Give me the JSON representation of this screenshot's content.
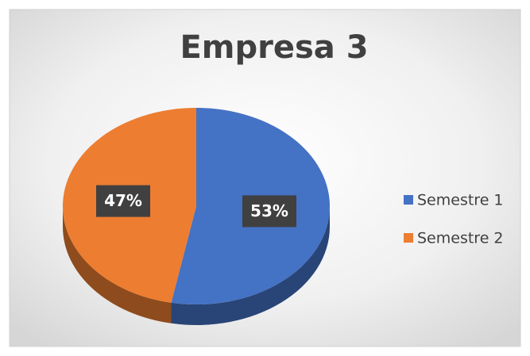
{
  "chart_data": {
    "type": "pie",
    "title": "Empresa 3",
    "categories": [
      "Semestre 1",
      "Semestre 2"
    ],
    "values": [
      53,
      47
    ],
    "value_labels": [
      "53%",
      "47%"
    ],
    "colors": [
      "#4472c4",
      "#ed7d31"
    ],
    "legend": "right"
  }
}
